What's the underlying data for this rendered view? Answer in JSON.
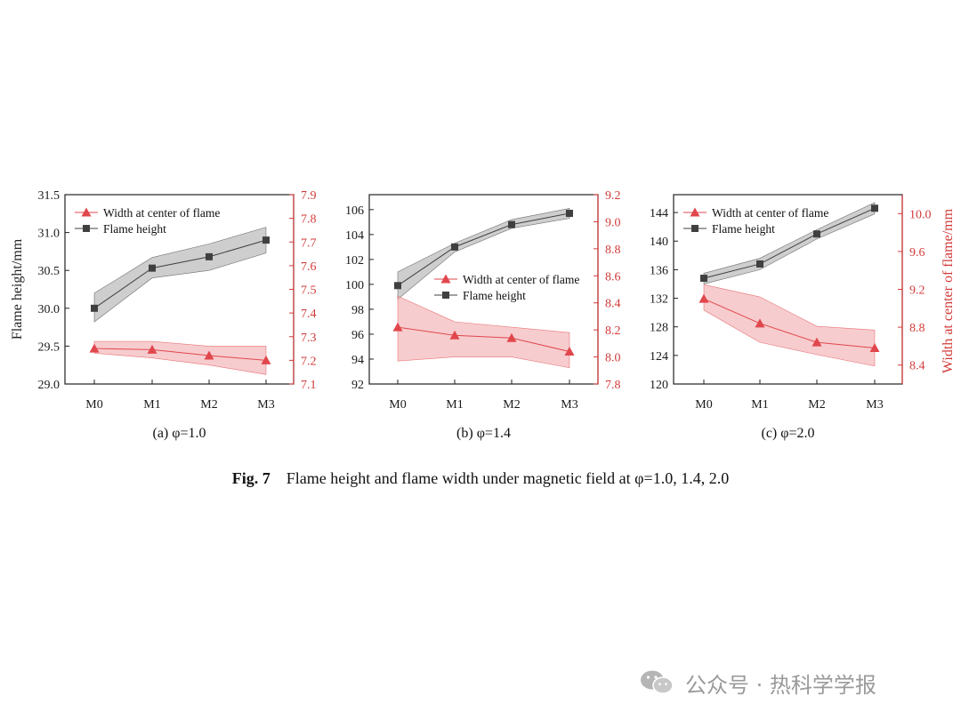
{
  "colors": {
    "height": "#404040",
    "height_band": "#b3b3b3",
    "width": "#e0474c",
    "width_band": "#f3b1b3",
    "right_axis": "#d23a3a"
  },
  "caption": {
    "label": "Fig. 7",
    "text": "Flame height and flame width under magnetic field at φ=1.0, 1.4, 2.0"
  },
  "watermark": {
    "text": "公众号 · 热科学学报",
    "icon": "wechat-icon"
  },
  "chart_data": [
    {
      "type": "line",
      "subtitle": "(a) φ=1.0",
      "categories": [
        "M0",
        "M1",
        "M2",
        "M3"
      ],
      "ylabel": "Flame height/mm",
      "y2label": "",
      "ylim": [
        29.0,
        31.5
      ],
      "yticks": [
        "29.0",
        "29.5",
        "30.0",
        "30.5",
        "31.0",
        "31.5"
      ],
      "y2lim": [
        7.1,
        7.9
      ],
      "y2ticks": [
        "7.1",
        "7.2",
        "7.3",
        "7.4",
        "7.5",
        "7.6",
        "7.7",
        "7.8",
        "7.9"
      ],
      "legend_placement": "top-left",
      "legend": [
        "Width at center of flame",
        "Flame height"
      ],
      "series": [
        {
          "name": "Flame height",
          "axis": "left",
          "marker": "square",
          "values": [
            30.0,
            30.53,
            30.68,
            30.9
          ],
          "band_low": [
            29.82,
            30.4,
            30.5,
            30.73
          ],
          "band_high": [
            30.2,
            30.67,
            30.85,
            31.07
          ]
        },
        {
          "name": "Width at center of flame",
          "axis": "right",
          "marker": "triangle",
          "values": [
            7.25,
            7.245,
            7.22,
            7.2
          ],
          "band_low": [
            7.23,
            7.21,
            7.18,
            7.14
          ],
          "band_high": [
            7.28,
            7.28,
            7.26,
            7.26
          ]
        }
      ]
    },
    {
      "type": "line",
      "subtitle": "(b) φ=1.4",
      "categories": [
        "M0",
        "M1",
        "M2",
        "M3"
      ],
      "ylabel": "",
      "y2label": "",
      "ylim": [
        92,
        107.2
      ],
      "yticks": [
        "92",
        "94",
        "96",
        "98",
        "100",
        "102",
        "104",
        "106"
      ],
      "y2lim": [
        7.8,
        9.2
      ],
      "y2ticks": [
        "7.8",
        "8.0",
        "8.2",
        "8.4",
        "8.6",
        "8.8",
        "9.0",
        "9.2"
      ],
      "legend_placement": "center-right",
      "legend": [
        "Width at center of flame",
        "Flame height"
      ],
      "series": [
        {
          "name": "Flame height",
          "axis": "left",
          "marker": "square",
          "values": [
            99.9,
            103.0,
            104.8,
            105.7
          ],
          "band_low": [
            98.8,
            102.6,
            104.5,
            105.3
          ],
          "band_high": [
            101.0,
            103.3,
            105.2,
            106.1
          ]
        },
        {
          "name": "Width at center of flame",
          "axis": "right",
          "marker": "triangle",
          "values": [
            8.22,
            8.16,
            8.14,
            8.04
          ],
          "band_low": [
            7.97,
            8.0,
            8.0,
            7.92
          ],
          "band_high": [
            8.45,
            8.26,
            8.22,
            8.18
          ]
        }
      ]
    },
    {
      "type": "line",
      "subtitle": "(c) φ=2.0",
      "categories": [
        "M0",
        "M1",
        "M2",
        "M3"
      ],
      "ylabel": "",
      "y2label": "Width at center of flame/mm",
      "ylim": [
        120,
        146.5
      ],
      "yticks": [
        "120",
        "124",
        "128",
        "132",
        "136",
        "140",
        "144"
      ],
      "y2lim": [
        8.2,
        10.2
      ],
      "y2ticks": [
        "8.4",
        "8.8",
        "9.2",
        "9.6",
        "10.0"
      ],
      "legend_placement": "top-left",
      "legend": [
        "Width at center of flame",
        "Flame height"
      ],
      "series": [
        {
          "name": "Flame height",
          "axis": "left",
          "marker": "square",
          "values": [
            134.8,
            136.8,
            141.0,
            144.6
          ],
          "band_low": [
            134.0,
            136.0,
            140.3,
            143.8
          ],
          "band_high": [
            135.5,
            137.6,
            141.6,
            145.4
          ]
        },
        {
          "name": "Width at center of flame",
          "axis": "right",
          "marker": "triangle",
          "values": [
            9.1,
            8.84,
            8.64,
            8.58
          ],
          "band_low": [
            8.98,
            8.64,
            8.51,
            8.39
          ],
          "band_high": [
            9.25,
            9.12,
            8.81,
            8.77
          ]
        }
      ]
    }
  ]
}
